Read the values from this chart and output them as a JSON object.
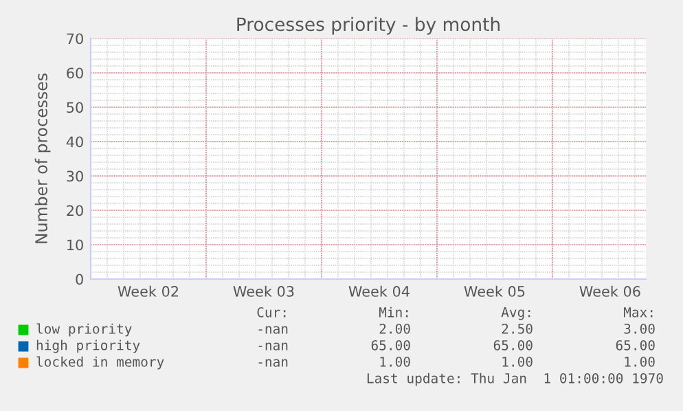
{
  "chart_data": {
    "type": "line",
    "title": "Processes priority - by month",
    "ylabel": "Number of processes",
    "categories": [
      "Week 02",
      "Week 03",
      "Week 04",
      "Week 05",
      "Week 06"
    ],
    "series": [
      {
        "name": "low priority",
        "color": "#00cc00",
        "values": [
          null,
          null,
          null,
          null,
          null
        ]
      },
      {
        "name": "high priority",
        "color": "#0066b3",
        "values": [
          null,
          null,
          null,
          null,
          null
        ]
      },
      {
        "name": "locked in memory",
        "color": "#ff8000",
        "values": [
          null,
          null,
          null,
          null,
          null
        ]
      }
    ],
    "ylim": [
      0,
      70
    ],
    "yticks": [
      0,
      10,
      20,
      30,
      40,
      50,
      60,
      70
    ],
    "grid": true,
    "legend": "bottom",
    "annotations": [
      "Cur:",
      "Min:",
      "Avg:",
      "Max:",
      "-nan",
      "2.00",
      "2.50",
      "3.00",
      "-nan",
      "65.00",
      "65.00",
      "65.00",
      "-nan",
      "1.00",
      "1.00",
      "1.00",
      "Last update: Thu Jan  1 01:00:00 1970"
    ]
  }
}
